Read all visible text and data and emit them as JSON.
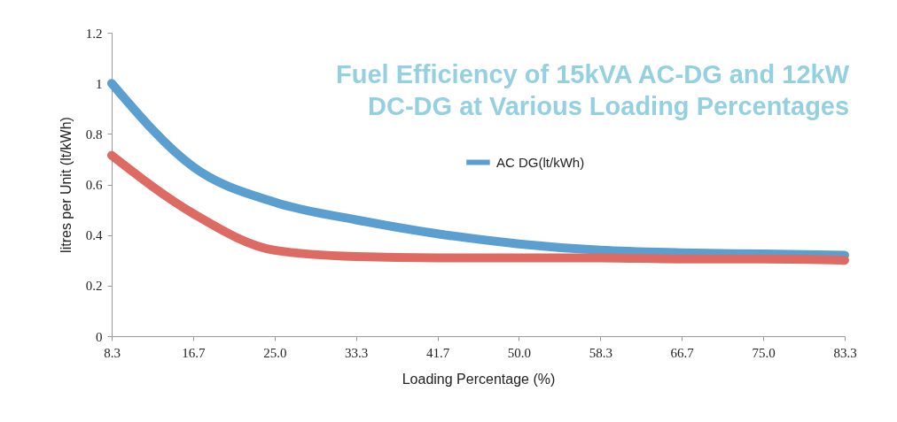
{
  "chart_data": {
    "type": "line",
    "title": "Fuel Efficiency of 15kVA AC-DG  and 12kW DC-DG at Various Loading Percentages",
    "xlabel": "Loading Percentage (%)",
    "ylabel": "litres per Unit (lt/kWh)",
    "categories": [
      "8.3",
      "16.7",
      "25.0",
      "33.3",
      "41.7",
      "50.0",
      "58.3",
      "66.7",
      "75.0",
      "83.3"
    ],
    "series": [
      {
        "name": "AC DG(lt/kWh)",
        "color": "#5b9fd0",
        "values": [
          1.0,
          0.67,
          0.53,
          0.46,
          0.405,
          0.365,
          0.34,
          0.33,
          0.325,
          0.32
        ]
      },
      {
        "color": "#dd6b63",
        "values": [
          0.715,
          0.485,
          0.34,
          0.315,
          0.31,
          0.31,
          0.31,
          0.305,
          0.305,
          0.3
        ]
      }
    ],
    "ylim": [
      0,
      1.2
    ],
    "yticks": [
      0,
      0.2,
      0.4,
      0.6,
      0.8,
      1,
      1.2
    ],
    "grid": false,
    "legend": "top",
    "marker": "none",
    "line_style": "solid"
  }
}
